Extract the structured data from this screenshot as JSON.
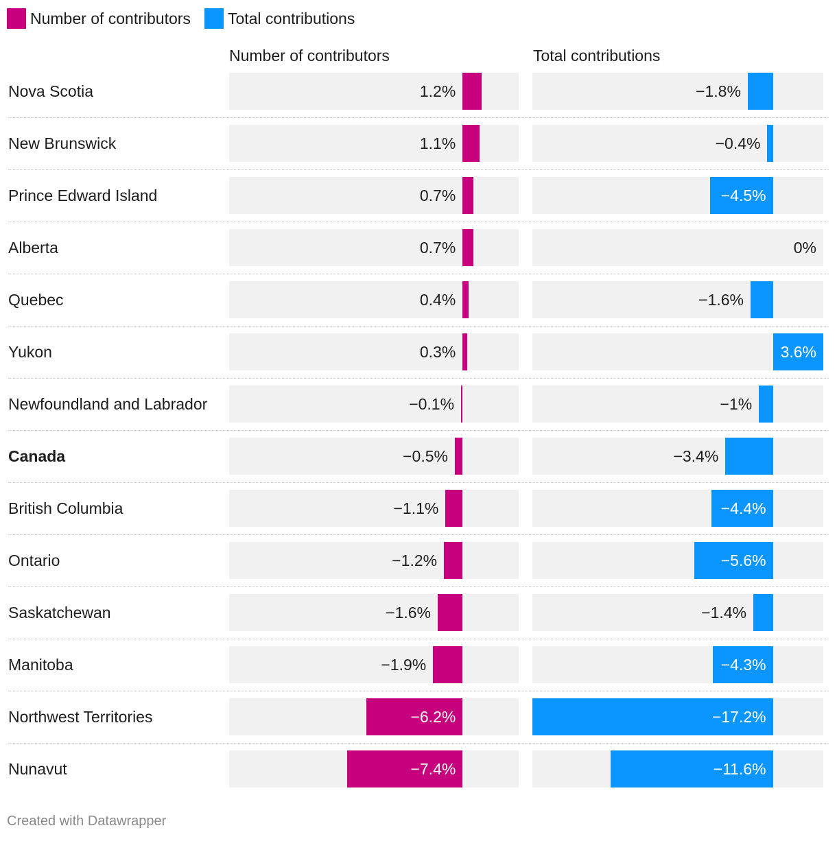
{
  "legend": [
    {
      "label": "Number of contributors",
      "color": "#c7007d"
    },
    {
      "label": "Total contributions",
      "color": "#0a95ff"
    }
  ],
  "footer": "Created with Datawrapper",
  "chart_data": {
    "type": "bar",
    "orientation": "horizontal",
    "categories": [
      "Nova Scotia",
      "New Brunswick",
      "Prince Edward Island",
      "Alberta",
      "Quebec",
      "Yukon",
      "Newfoundland and Labrador",
      "Canada",
      "British Columbia",
      "Ontario",
      "Saskatchewan",
      "Manitoba",
      "Northwest Territories",
      "Nunavut"
    ],
    "highlighted_category": "Canada",
    "series": [
      {
        "name": "Number of contributors",
        "color": "#c7007d",
        "values": [
          1.2,
          1.1,
          0.7,
          0.7,
          0.4,
          0.3,
          -0.1,
          -0.5,
          -1.1,
          -1.2,
          -1.6,
          -1.9,
          -6.2,
          -7.4
        ],
        "labels": [
          "1.2%",
          "1.1%",
          "0.7%",
          "0.7%",
          "0.4%",
          "0.3%",
          "−0.1%",
          "−0.5%",
          "−1.1%",
          "−1.2%",
          "−1.6%",
          "−1.9%",
          "−6.2%",
          "−7.4%"
        ],
        "xlim": [
          -15,
          3.6
        ]
      },
      {
        "name": "Total contributions",
        "color": "#0a95ff",
        "values": [
          -1.8,
          -0.4,
          -4.5,
          0,
          -1.6,
          3.6,
          -1,
          -3.4,
          -4.4,
          -5.6,
          -1.4,
          -4.3,
          -17.2,
          -11.6
        ],
        "labels": [
          "−1.8%",
          "−0.4%",
          "−4.5%",
          "0%",
          "−1.6%",
          "3.6%",
          "−1%",
          "−3.4%",
          "−4.4%",
          "−5.6%",
          "−1.4%",
          "−4.3%",
          "−17.2%",
          "−11.6%"
        ],
        "xlim": [
          -17.2,
          3.6
        ]
      }
    ],
    "units": "%"
  }
}
